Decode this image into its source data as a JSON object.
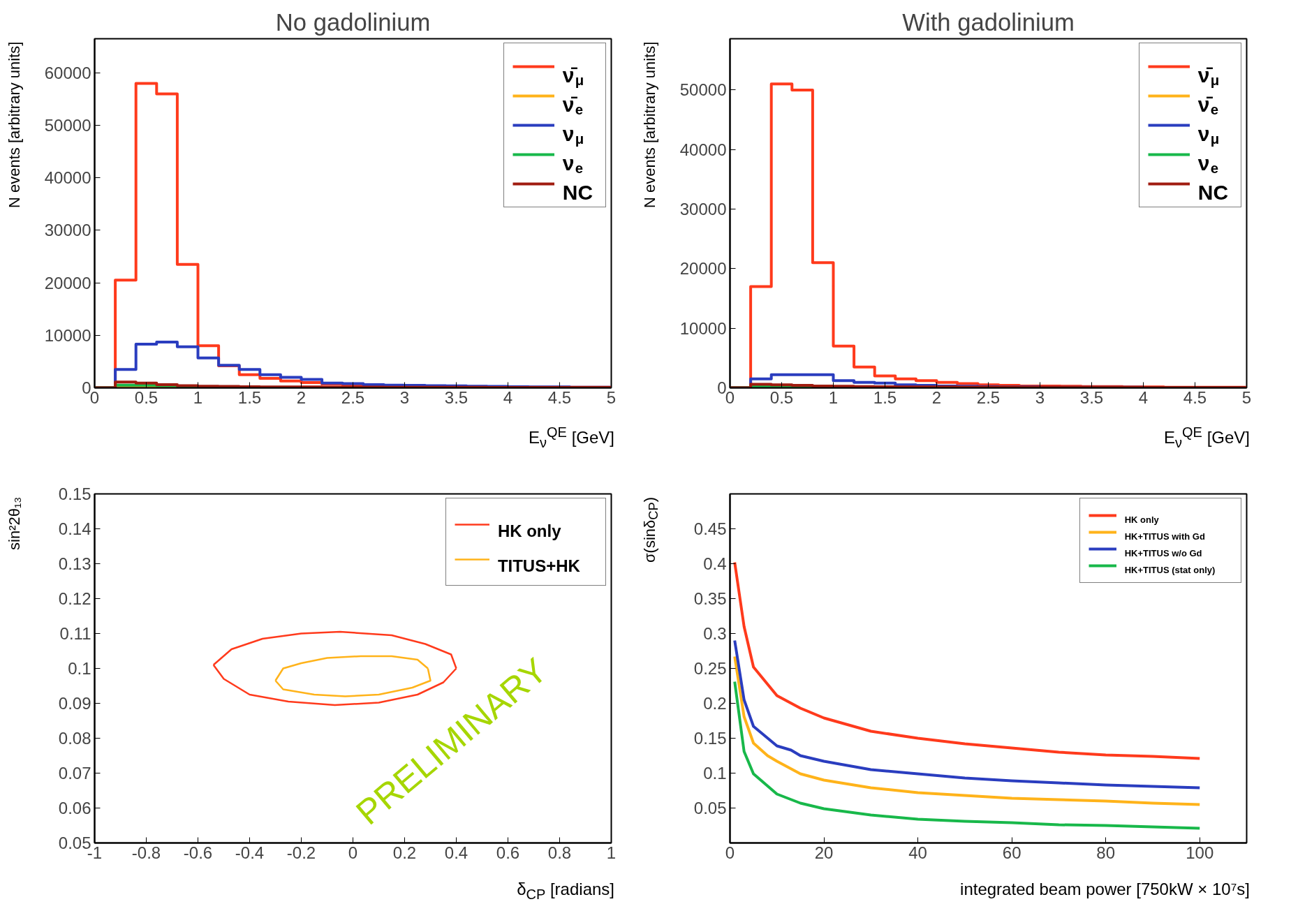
{
  "chart_data": [
    {
      "type": "histogram",
      "title": "No gadolinium",
      "xlabel": "E$_{ν}$$^{QE}$ [GeV]",
      "ylabel": "N events [arbitrary units]",
      "bins": [
        0,
        0.2,
        0.4,
        0.6,
        0.8,
        1.0,
        1.2,
        1.4,
        1.6,
        1.8,
        2.0,
        2.2,
        2.4,
        2.6,
        2.8,
        3.0,
        3.2,
        3.4,
        3.6,
        3.8,
        4.0,
        4.2,
        4.4,
        4.6,
        4.8,
        5.0
      ],
      "xlim": [
        0,
        5
      ],
      "ylim": [
        0,
        66500
      ],
      "xticks": [
        0,
        0.5,
        1,
        1.5,
        2,
        2.5,
        3,
        3.5,
        4,
        4.5,
        5
      ],
      "yticks": [
        0,
        10000,
        20000,
        30000,
        40000,
        50000,
        60000
      ],
      "grid": false,
      "legend": "top right",
      "series": [
        {
          "name": "ν̄$_{μ}$",
          "color": "#ff3a1c",
          "values": [
            0,
            20500,
            58000,
            56000,
            23500,
            8000,
            4200,
            2500,
            1800,
            1300,
            1000,
            700,
            500,
            400,
            350,
            300,
            250,
            200,
            200,
            150,
            150,
            100,
            100,
            100,
            100
          ]
        },
        {
          "name": "ν̄$_{e}$",
          "color": "#ffb31a",
          "values": [
            0,
            150,
            200,
            200,
            150,
            100,
            80,
            60,
            50,
            40,
            30,
            20,
            20,
            10,
            10,
            10,
            10,
            10,
            5,
            5,
            5,
            5,
            5,
            5,
            5
          ]
        },
        {
          "name": "ν$_{μ}$",
          "color": "#2a3dbf",
          "values": [
            0,
            3500,
            8300,
            8700,
            7800,
            5700,
            4300,
            3500,
            2500,
            2000,
            1600,
            900,
            800,
            600,
            500,
            450,
            400,
            350,
            300,
            250,
            200,
            150,
            150,
            100,
            100
          ]
        },
        {
          "name": "ν$_{e}$",
          "color": "#18b84a",
          "values": [
            0,
            500,
            500,
            400,
            300,
            200,
            150,
            100,
            80,
            60,
            50,
            40,
            30,
            20,
            20,
            10,
            10,
            10,
            10,
            10,
            5,
            5,
            5,
            5,
            5
          ]
        },
        {
          "name": "NC",
          "color": "#a01c10",
          "values": [
            0,
            1100,
            900,
            600,
            400,
            300,
            250,
            200,
            180,
            160,
            150,
            140,
            130,
            120,
            110,
            100,
            100,
            90,
            90,
            80,
            80,
            70,
            70,
            60,
            60
          ]
        }
      ]
    },
    {
      "type": "histogram",
      "title": "With gadolinium",
      "xlabel": "E$_{ν}$$^{QE}$ [GeV]",
      "ylabel": "N events [arbitrary units]",
      "bins": [
        0,
        0.2,
        0.4,
        0.6,
        0.8,
        1.0,
        1.2,
        1.4,
        1.6,
        1.8,
        2.0,
        2.2,
        2.4,
        2.6,
        2.8,
        3.0,
        3.2,
        3.4,
        3.6,
        3.8,
        4.0,
        4.2,
        4.4,
        4.6,
        4.8,
        5.0
      ],
      "xlim": [
        0,
        5
      ],
      "ylim": [
        0,
        58600
      ],
      "xticks": [
        0,
        0.5,
        1,
        1.5,
        2,
        2.5,
        3,
        3.5,
        4,
        4.5,
        5
      ],
      "yticks": [
        0,
        10000,
        20000,
        30000,
        40000,
        50000
      ],
      "grid": false,
      "legend": "top right",
      "series": [
        {
          "name": "ν̄$_{μ}$",
          "color": "#ff3a1c",
          "values": [
            0,
            17000,
            51000,
            50000,
            21000,
            7000,
            3500,
            2000,
            1500,
            1200,
            900,
            700,
            500,
            400,
            300,
            300,
            250,
            200,
            200,
            150,
            150,
            100,
            100,
            100,
            100
          ]
        },
        {
          "name": "ν̄$_{e}$",
          "color": "#ffb31a",
          "values": [
            0,
            100,
            150,
            150,
            100,
            80,
            60,
            50,
            40,
            30,
            20,
            20,
            10,
            10,
            10,
            10,
            10,
            5,
            5,
            5,
            5,
            5,
            5,
            5,
            5
          ]
        },
        {
          "name": "ν$_{μ}$",
          "color": "#2a3dbf",
          "values": [
            0,
            1500,
            2200,
            2200,
            2200,
            1200,
            900,
            800,
            500,
            400,
            300,
            250,
            200,
            150,
            150,
            100,
            100,
            100,
            80,
            80,
            60,
            60,
            50,
            50,
            50
          ]
        },
        {
          "name": "ν$_{e}$",
          "color": "#18b84a",
          "values": [
            0,
            300,
            300,
            250,
            200,
            150,
            100,
            80,
            60,
            50,
            40,
            30,
            20,
            20,
            10,
            10,
            10,
            10,
            10,
            5,
            5,
            5,
            5,
            5,
            5
          ]
        },
        {
          "name": "NC",
          "color": "#a01c10",
          "values": [
            0,
            600,
            500,
            400,
            300,
            250,
            200,
            180,
            160,
            150,
            140,
            130,
            120,
            110,
            100,
            100,
            90,
            90,
            80,
            80,
            70,
            70,
            60,
            60,
            60
          ]
        }
      ]
    },
    {
      "type": "line",
      "xlabel": "δ$_{CP}$ [radians]",
      "ylabel": "sin²2θ₁₃",
      "xlim": [
        -1,
        1
      ],
      "ylim": [
        0.05,
        0.15
      ],
      "xticks": [
        -1,
        -0.8,
        -0.6,
        -0.4,
        -0.2,
        0,
        0.2,
        0.4,
        0.6,
        0.8,
        1
      ],
      "yticks": [
        0.05,
        0.06,
        0.07,
        0.08,
        0.09,
        0.1,
        0.11,
        0.12,
        0.13,
        0.14,
        0.15
      ],
      "grid": false,
      "legend": "top right",
      "annotations": [
        "PRELIMINARY"
      ],
      "series": [
        {
          "name": "HK only",
          "color": "#ff3a1c",
          "x": [
            -0.54,
            -0.47,
            -0.35,
            -0.2,
            -0.05,
            0.15,
            0.28,
            0.38,
            0.4
          ],
          "values": [
            0.101,
            0.1055,
            0.1085,
            0.11,
            0.1105,
            0.1095,
            0.107,
            0.104,
            0.1
          ]
        },
        {
          "color": "#ff3a1c",
          "x": [
            -0.54,
            -0.5,
            -0.4,
            -0.25,
            -0.07,
            0.1,
            0.25,
            0.35,
            0.4
          ],
          "values": [
            0.101,
            0.097,
            0.0925,
            0.0905,
            0.0895,
            0.0902,
            0.0925,
            0.096,
            0.1
          ]
        },
        {
          "name": "TITUS+HK",
          "color": "#ffb31a",
          "x": [
            -0.3,
            -0.27,
            -0.2,
            -0.1,
            0.03,
            0.15,
            0.25,
            0.29
          ],
          "values": [
            0.0965,
            0.1,
            0.1015,
            0.103,
            0.1035,
            0.1035,
            0.1025,
            0.1
          ]
        },
        {
          "color": "#ffb31a",
          "x": [
            -0.3,
            -0.27,
            -0.15,
            -0.03,
            0.1,
            0.23,
            0.3,
            0.29
          ],
          "values": [
            0.0965,
            0.094,
            0.0925,
            0.092,
            0.0925,
            0.0945,
            0.0965,
            0.1
          ]
        }
      ]
    },
    {
      "type": "line",
      "xlabel": "integrated beam power [750kW × 10⁷s]",
      "ylabel": "σ(sinδ$_{CP}$)",
      "xlim": [
        0,
        110
      ],
      "ylim": [
        0,
        0.5
      ],
      "xticks": [
        0,
        20,
        40,
        60,
        80,
        100
      ],
      "yticks": [
        0.05,
        0.1,
        0.15,
        0.2,
        0.25,
        0.3,
        0.35,
        0.4,
        0.45
      ],
      "grid": false,
      "legend": "top right",
      "series": [
        {
          "name": "HK only",
          "color": "#ff3a1c",
          "x": [
            1,
            3,
            5,
            10,
            15,
            20,
            30,
            40,
            50,
            60,
            70,
            80,
            90,
            100
          ],
          "values": [
            0.402,
            0.31,
            0.252,
            0.211,
            0.193,
            0.179,
            0.16,
            0.15,
            0.142,
            0.136,
            0.13,
            0.126,
            0.124,
            0.121
          ]
        },
        {
          "name": "HK+TITUS with Gd",
          "color": "#ffb31a",
          "x": [
            1,
            3,
            5,
            8,
            10,
            15,
            20,
            30,
            40,
            50,
            60,
            70,
            80,
            90,
            100
          ],
          "values": [
            0.267,
            0.181,
            0.143,
            0.125,
            0.117,
            0.099,
            0.09,
            0.079,
            0.072,
            0.068,
            0.064,
            0.062,
            0.06,
            0.057,
            0.055
          ]
        },
        {
          "name": "HK+TITUS w/o Gd",
          "color": "#2a3dbf",
          "x": [
            1,
            3,
            5,
            10,
            13,
            15,
            20,
            30,
            40,
            50,
            60,
            70,
            80,
            90,
            100
          ],
          "values": [
            0.29,
            0.205,
            0.167,
            0.139,
            0.133,
            0.125,
            0.117,
            0.105,
            0.099,
            0.093,
            0.089,
            0.086,
            0.083,
            0.081,
            0.079
          ]
        },
        {
          "name": "HK+TITUS (stat only)",
          "color": "#18b84a",
          "x": [
            1,
            3,
            5,
            10,
            15,
            20,
            30,
            40,
            50,
            60,
            70,
            80,
            90,
            100
          ],
          "values": [
            0.231,
            0.131,
            0.099,
            0.07,
            0.057,
            0.049,
            0.04,
            0.034,
            0.031,
            0.029,
            0.026,
            0.025,
            0.023,
            0.021
          ]
        }
      ]
    }
  ]
}
